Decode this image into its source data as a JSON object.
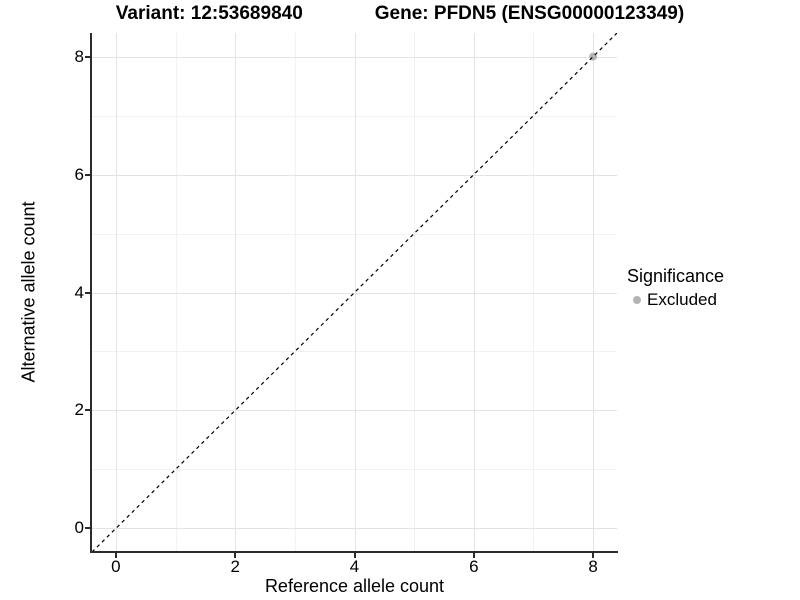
{
  "chart_data": {
    "type": "scatter",
    "title": "Variant: 12:53689840    Gene: PFDN5 (ENSG00000123349)",
    "title_parts": {
      "variant": "Variant: 12:53689840",
      "gene": "Gene: PFDN5 (ENSG00000123349)"
    },
    "xlabel": "Reference allele count",
    "ylabel": "Alternative allele count",
    "xlim": [
      -0.4,
      8.4
    ],
    "ylim": [
      -0.4,
      8.4
    ],
    "x_ticks": [
      0,
      2,
      4,
      6,
      8
    ],
    "y_ticks": [
      0,
      2,
      4,
      6,
      8
    ],
    "x_minor_ticks": [
      1,
      3,
      5,
      7
    ],
    "y_minor_ticks": [
      1,
      3,
      5,
      7
    ],
    "grid": true,
    "series": [
      {
        "name": "Excluded",
        "color": "#b4b4b4",
        "points": [
          {
            "x": 8,
            "y": 8
          }
        ]
      }
    ],
    "reference_line": {
      "type": "identity",
      "equation": "y = x",
      "style": "dashed",
      "color": "#000000"
    },
    "legend": {
      "title": "Significance",
      "position": "right",
      "entries": [
        {
          "label": "Excluded",
          "color": "#b4b4b4"
        }
      ]
    }
  },
  "colors": {
    "background": "#ffffff",
    "axis_line": "#2b2b2b",
    "grid_major": "#e3e3e3",
    "grid_minor": "#f1f1f1",
    "text": "#000000",
    "point": "#b4b4b4"
  }
}
